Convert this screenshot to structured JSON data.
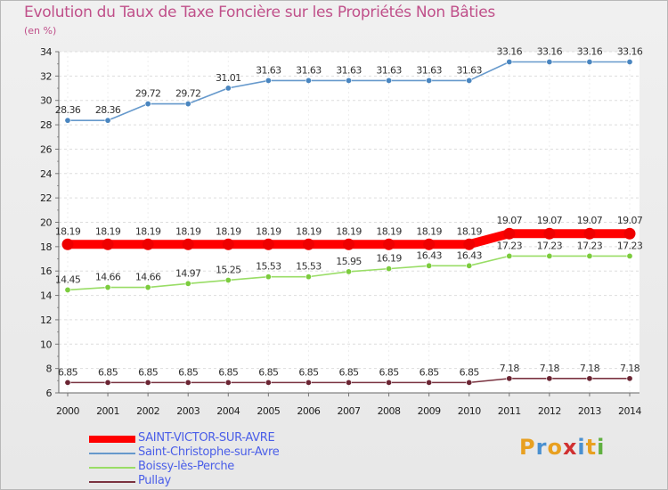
{
  "header": {
    "title": "Evolution du Taux de Taxe Foncière sur les Propriétés Non Bâties",
    "unit": "(en %)"
  },
  "chart_data": {
    "type": "line",
    "title": "Evolution du Taux de Taxe Foncière sur les Propriétés Non Bâties",
    "ylabel": "(en %)",
    "xlabel": "",
    "ylim": [
      6,
      34
    ],
    "yticks": [
      6,
      8,
      10,
      12,
      14,
      16,
      18,
      20,
      22,
      24,
      26,
      28,
      30,
      32,
      34
    ],
    "categories": [
      "2000",
      "2001",
      "2002",
      "2003",
      "2004",
      "2005",
      "2006",
      "2007",
      "2008",
      "2009",
      "2010",
      "2011",
      "2012",
      "2013",
      "2014"
    ],
    "grid": true,
    "series": [
      {
        "name": "Saint-Christophe-sur-Avre",
        "color": "#6699cc",
        "marker": "#4a86c0",
        "values": [
          28.36,
          28.36,
          29.72,
          29.72,
          31.01,
          31.63,
          31.63,
          31.63,
          31.63,
          31.63,
          31.63,
          33.16,
          33.16,
          33.16,
          33.16
        ]
      },
      {
        "name": "Boissy-lès-Perche",
        "color": "#99dd66",
        "marker": "#7ccc3e",
        "values": [
          14.45,
          14.66,
          14.66,
          14.97,
          15.25,
          15.53,
          15.53,
          15.95,
          16.19,
          16.43,
          16.43,
          17.23,
          17.23,
          17.23,
          17.23
        ]
      },
      {
        "name": "Pullay",
        "color": "#7a3340",
        "marker": "#6b2533",
        "values": [
          6.85,
          6.85,
          6.85,
          6.85,
          6.85,
          6.85,
          6.85,
          6.85,
          6.85,
          6.85,
          6.85,
          7.18,
          7.18,
          7.18,
          7.18
        ]
      },
      {
        "name": "SAINT-VICTOR-SUR-AVRE",
        "color": "#ff0000",
        "marker": "#ee0000",
        "values": [
          18.19,
          18.19,
          18.19,
          18.19,
          18.19,
          18.19,
          18.19,
          18.19,
          18.19,
          18.19,
          18.19,
          19.07,
          19.07,
          19.07,
          19.07
        ]
      }
    ],
    "value_labels": {
      "Saint-Christophe-sur-Avre": [
        "28.36",
        "28.36",
        "29.72",
        "29.72",
        "31.01",
        "31.63",
        "31.63",
        "31.63",
        "31.63",
        "31.63",
        "31.63",
        "33.16",
        "33.16",
        "33.16",
        "33.16"
      ],
      "Boissy-lès-Perche": [
        "14.45",
        "14.66",
        "14.66",
        "14.97",
        "15.25",
        "15.53",
        "15.53",
        "15.95",
        "16.19",
        "16.43",
        "16.43",
        "17.23",
        "17.23",
        "17.23",
        "17.23"
      ],
      "Pullay": [
        "6.85",
        "6.85",
        "6.85",
        "6.85",
        "6.85",
        "6.85",
        "6.85",
        "6.85",
        "6.85",
        "6.85",
        "6.85",
        "7.18",
        "7.18",
        "7.18",
        "7.18"
      ],
      "SAINT-VICTOR-SUR-AVRE": [
        "18.19",
        "18.19",
        "18.19",
        "18.19",
        "18.19",
        "18.19",
        "18.19",
        "18.19",
        "18.19",
        "18.19",
        "18.19",
        "19.07",
        "19.07",
        "19.07",
        "19.07"
      ]
    }
  },
  "legend": {
    "items": [
      {
        "label": "SAINT-VICTOR-SUR-AVRE",
        "color": "#ff0000"
      },
      {
        "label": "Saint-Christophe-sur-Avre",
        "color": "#6699cc"
      },
      {
        "label": "Boissy-lès-Perche",
        "color": "#99dd66"
      },
      {
        "label": "Pullay",
        "color": "#7a3340"
      }
    ]
  },
  "logo": {
    "letters": [
      "P",
      "r",
      "o",
      "x",
      "i",
      "t",
      "i"
    ],
    "colors": [
      "#e8a020",
      "#4a90d0",
      "#e8a020",
      "#d03030",
      "#4a90d0",
      "#e8a020",
      "#60b040"
    ]
  }
}
